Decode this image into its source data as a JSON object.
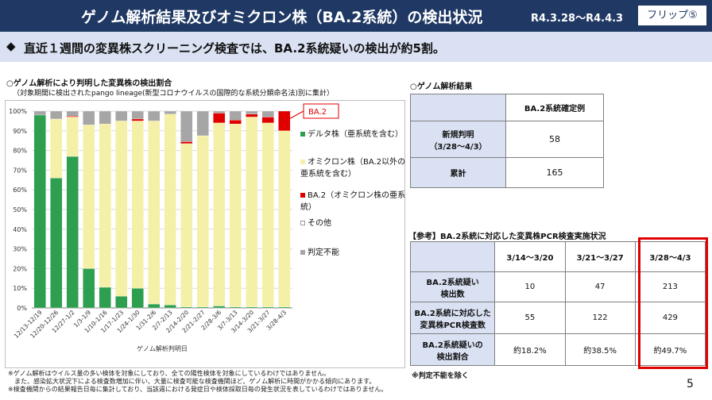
{
  "header": {
    "title": "ゲノム解析結果及びオミクロン株（BA.2系統）の検出状況",
    "date_range": "R4.3.28～R4.4.3",
    "flip_label": "フリップ⑤"
  },
  "subheader": {
    "marker": "◆",
    "text": "直近１週間の変異株スクリーニング検査では、BA.2系統疑いの検出が約5割。"
  },
  "chart_section": {
    "title": "○ゲノム解析により判明した変異株の検出割合",
    "subtitle": "（対象期間に検出されたpango lineage(新型コロナウイルスの国際的な系統分類命名法)別に集計）",
    "callout": "BA.2"
  },
  "chart_data": {
    "type": "bar",
    "stacked": true,
    "categories": [
      "12/13-12/19",
      "12/20-12/26",
      "12/27-1/2",
      "1/3-1/9",
      "1/10-1/16",
      "1/17-1/23",
      "1/24-1/30",
      "1/31-2/6",
      "2/7-2/13",
      "2/14-2/20",
      "2/21-2/27",
      "2/28-3/6",
      "3/7-3/13",
      "3/14-3/20",
      "3/21-3/27",
      "3/28-4/3"
    ],
    "xlabel": "ゲノム解析判明日",
    "ylim": [
      0,
      100
    ],
    "yticks": [
      "0%",
      "10%",
      "20%",
      "30%",
      "40%",
      "50%",
      "60%",
      "70%",
      "80%",
      "90%",
      "100%"
    ],
    "legend_position": "right",
    "series": [
      {
        "name": "デルタ株（亜系統を含む）",
        "color": "#2e9e4f",
        "values": [
          98,
          66,
          77,
          20,
          10.5,
          6,
          10,
          2,
          1.5,
          0.5,
          0.5,
          1,
          0.5,
          0.5,
          0.5,
          0.5
        ]
      },
      {
        "name": "オミクロン株（BA.2以外の亜系統を含む）",
        "color": "#f5f0a8",
        "values": [
          0,
          30,
          20,
          73,
          83,
          89,
          85,
          93,
          97,
          83,
          87,
          93,
          93,
          96.5,
          93.5,
          89.5
        ]
      },
      {
        "name": "BA.2（オミクロン株の亜系統）",
        "color": "#e00000",
        "values": [
          0,
          0,
          0.5,
          0,
          0,
          0,
          1,
          0,
          0,
          1,
          0,
          5,
          2,
          1.5,
          3,
          10
        ]
      },
      {
        "name": "その他",
        "color": "#ffffff",
        "values": [
          0,
          0,
          0,
          0,
          0,
          0,
          0,
          0,
          0,
          0,
          0,
          0,
          0,
          0,
          0,
          0
        ]
      },
      {
        "name": "判定不能",
        "color": "#a6a6a6",
        "values": [
          2,
          4,
          2.5,
          7,
          6.5,
          5,
          4,
          5,
          1.5,
          15.5,
          12.5,
          1,
          4.5,
          1.5,
          3,
          0
        ]
      }
    ]
  },
  "genome_section": {
    "title": "○ゲノム解析結果",
    "column_header": "BA.2系統確定例",
    "rows": [
      {
        "label": "新規判明\n（3/28～4/3）",
        "value": "58"
      },
      {
        "label": "累計",
        "value": "165"
      }
    ]
  },
  "pcr_section": {
    "title": "【参考】BA.2系統に対応した変異株PCR検査実施状況",
    "columns": [
      "3/14～3/20",
      "3/21～3/27",
      "3/28～4/3"
    ],
    "rows": [
      {
        "label": "BA.2系統疑い\n検出数",
        "values": [
          "10",
          "47",
          "213"
        ]
      },
      {
        "label": "BA.2系統に対応した\n変異株PCR検査数",
        "values": [
          "55",
          "122",
          "429"
        ]
      },
      {
        "label": "BA.2系統疑いの\n検出割合",
        "values": [
          "約18.2%",
          "約38.5%",
          "約49.7%"
        ]
      }
    ],
    "footnote": "※判定不能を除く"
  },
  "notes": [
    "※ゲノム解析はウイルス量の多い検体を対象にしており、全ての陽性検体を対象にしているわけではありません。",
    "　また、感染拡大状況下による検査数増加に伴い、大量に検査可能な検査機関ほど、ゲノム解析に時間がかかる傾向にあります。",
    "※検査機関からの結果報告日毎に集計しており、当該週における発症日や検体採取日毎の発生状況を表しているわけではありません。"
  ],
  "page_number": "5"
}
